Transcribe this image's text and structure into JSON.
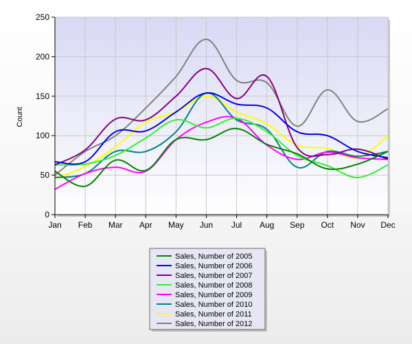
{
  "chart_data": {
    "type": "line",
    "title": "",
    "xlabel": "",
    "ylabel": "Count",
    "ylim": [
      0,
      250
    ],
    "yticks": [
      0,
      50,
      100,
      150,
      200,
      250
    ],
    "grid": true,
    "legend_position": "bottom-center",
    "categories": [
      "Jan",
      "Feb",
      "Mar",
      "Apr",
      "May",
      "Jun",
      "Jul",
      "Aug",
      "Sep",
      "Oct",
      "Nov",
      "Dec"
    ],
    "series": [
      {
        "name": "Sales, Number of 2005",
        "color": "#008000",
        "values": [
          55,
          36,
          69,
          56,
          95,
          95,
          109,
          89,
          77,
          58,
          64,
          80
        ]
      },
      {
        "name": "Sales, Number of 2006",
        "color": "#0000dd",
        "values": [
          67,
          67,
          105,
          106,
          130,
          154,
          140,
          135,
          105,
          100,
          80,
          72
        ]
      },
      {
        "name": "Sales, Number of 2007",
        "color": "#800080",
        "values": [
          63,
          82,
          121,
          120,
          150,
          185,
          147,
          175,
          85,
          76,
          83,
          70
        ]
      },
      {
        "name": "Sales, Number of 2008",
        "color": "#33ee33",
        "values": [
          63,
          64,
          75,
          97,
          120,
          110,
          122,
          105,
          75,
          62,
          47,
          63
        ]
      },
      {
        "name": "Sales, Number of 2009",
        "color": "#ff00ff",
        "values": [
          32,
          52,
          60,
          55,
          95,
          117,
          122,
          88,
          70,
          79,
          72,
          70
        ]
      },
      {
        "name": "Sales, Number of 2010",
        "color": "#008080",
        "values": [
          47,
          52,
          80,
          80,
          105,
          154,
          120,
          108,
          60,
          80,
          74,
          80
        ]
      },
      {
        "name": "Sales, Number of 2011",
        "color": "#ffff00",
        "values": [
          46,
          61,
          86,
          117,
          130,
          150,
          130,
          115,
          88,
          84,
          72,
          100
        ]
      },
      {
        "name": "Sales, Number of 2012",
        "color": "#808080",
        "values": [
          50,
          80,
          100,
          135,
          175,
          222,
          170,
          167,
          112,
          158,
          118,
          134
        ]
      }
    ]
  }
}
